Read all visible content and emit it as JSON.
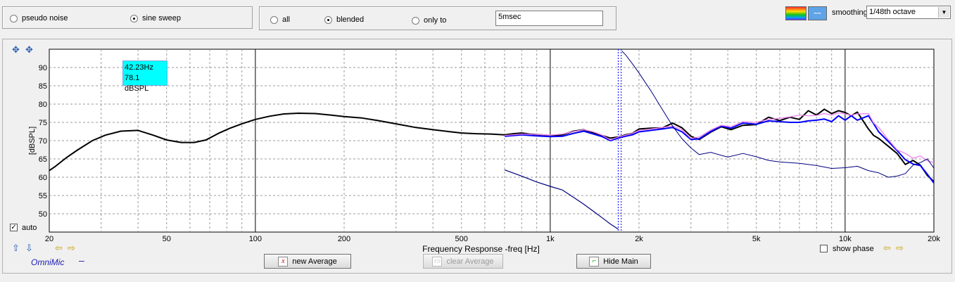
{
  "signal_group": {
    "options": [
      {
        "label": "pseudo noise",
        "selected": false
      },
      {
        "label": "sine sweep",
        "selected": true
      }
    ]
  },
  "window_group": {
    "options": [
      {
        "label": "all",
        "selected": false
      },
      {
        "label": "blended",
        "selected": true
      },
      {
        "label": "only to",
        "selected": false
      }
    ],
    "only_to_value": "5msec"
  },
  "top_right": {
    "smoothing_label": "smoothing",
    "smoothing_value": "1/48th octave"
  },
  "chart_panel": {
    "auto_label": "auto",
    "auto_checked": true,
    "show_phase_label": "show phase",
    "show_phase_checked": false,
    "source_label": "OmniMic",
    "source_dash": "–"
  },
  "buttons": {
    "new_average": "new Average",
    "clear_average": "clear Average",
    "hide_main": "Hide Main"
  },
  "chart_data": {
    "type": "line",
    "xlabel": "Frequency Response -freq [Hz]",
    "ylabel": "[dBSPL]",
    "x_scale": "log",
    "xlim": [
      20,
      20000
    ],
    "ylim": [
      45,
      95
    ],
    "grid": true,
    "x_ticks": [
      {
        "value": 20,
        "label": "20"
      },
      {
        "value": 50,
        "label": "50"
      },
      {
        "value": 100,
        "label": "100"
      },
      {
        "value": 200,
        "label": "200"
      },
      {
        "value": 500,
        "label": "500"
      },
      {
        "value": 1000,
        "label": "1k"
      },
      {
        "value": 2000,
        "label": "2k"
      },
      {
        "value": 5000,
        "label": "5k"
      },
      {
        "value": 10000,
        "label": "10k"
      },
      {
        "value": 20000,
        "label": "20k"
      }
    ],
    "y_ticks": [
      50,
      55,
      60,
      65,
      70,
      75,
      80,
      85,
      90
    ],
    "cursor_readout": {
      "freq": "42.23Hz",
      "level": "78.1 dBSPL"
    },
    "crossover_markers": [
      1700,
      1740
    ],
    "series": [
      {
        "color": "#000000",
        "width": 2,
        "x": [
          20,
          21,
          23,
          25,
          28,
          31,
          35,
          40,
          45,
          50,
          56,
          62,
          68,
          75,
          82,
          90,
          100,
          112,
          125,
          140,
          160,
          180,
          200,
          230,
          260,
          300,
          350,
          400,
          450,
          500,
          560,
          630,
          700,
          750,
          800,
          850,
          900,
          1000,
          1100,
          1200,
          1300,
          1400,
          1500,
          1600,
          1700,
          1800,
          1900,
          2000,
          2200,
          2400,
          2600,
          2800,
          3000,
          3200,
          3500,
          3800,
          4100,
          4500,
          5000,
          5500,
          6000,
          6500,
          7000,
          7500,
          8000,
          8500,
          9000,
          9500,
          10000,
          10500,
          11000,
          12000,
          12500,
          13000,
          14000,
          15000,
          16000,
          17000,
          18000,
          19000,
          20000
        ],
        "y": [
          61.8,
          63,
          65.5,
          67.5,
          70,
          71.5,
          72.6,
          72.8,
          71.5,
          70.2,
          69.5,
          69.5,
          70.2,
          72,
          73.4,
          74.6,
          75.8,
          76.7,
          77.3,
          77.5,
          77.4,
          77,
          76.6,
          76.2,
          75.5,
          74.6,
          73.6,
          73,
          72.5,
          72.1,
          71.9,
          71.8,
          71.6,
          71.9,
          72.1,
          71.8,
          71.7,
          71.4,
          71.6,
          72.6,
          73,
          72.1,
          71.4,
          70.7,
          71,
          71.6,
          72,
          73.2,
          73.4,
          73.5,
          74.8,
          73.5,
          71.2,
          70.3,
          72.3,
          73.8,
          73,
          74.2,
          74.4,
          76.4,
          75.5,
          76.4,
          75.8,
          78.2,
          77,
          78.6,
          77.4,
          78.2,
          77.7,
          76.8,
          77.8,
          73.2,
          71.4,
          70.6,
          68.5,
          66.5,
          63.5,
          64.6,
          63.3,
          60.5,
          58.8
        ]
      },
      {
        "color": "#0000ff",
        "width": 2,
        "x": [
          700,
          800,
          900,
          1000,
          1100,
          1200,
          1300,
          1400,
          1500,
          1600,
          1700,
          1800,
          1900,
          2000,
          2200,
          2400,
          2600,
          2800,
          3000,
          3200,
          3500,
          3800,
          4100,
          4500,
          5000,
          5500,
          6000,
          6500,
          7000,
          7500,
          8000,
          8500,
          9000,
          9500,
          10000,
          10500,
          11000,
          12000,
          12500,
          13000,
          14000,
          15000,
          16000,
          17000,
          18000,
          19000,
          20000
        ],
        "y": [
          71.2,
          71.6,
          71.3,
          71.1,
          71.2,
          72,
          72.6,
          71.8,
          71.1,
          70,
          70.7,
          71.2,
          71.6,
          72.4,
          72.8,
          73.2,
          73.6,
          72.4,
          70.3,
          70.5,
          72.5,
          74,
          73.4,
          74.8,
          74.5,
          75.4,
          75.2,
          75,
          75,
          75.4,
          75.6,
          75.9,
          75.2,
          76.8,
          75.6,
          76.8,
          75.6,
          76.8,
          74.6,
          72.4,
          69.8,
          67.3,
          64.8,
          63.6,
          63.2,
          60.8,
          58.4
        ]
      },
      {
        "color": "#ee82ee",
        "width": 1.3,
        "x": [
          700,
          800,
          900,
          1000,
          1100,
          1200,
          1300,
          1400,
          1500,
          1600,
          1700,
          1800,
          1900,
          2000,
          2200,
          2400,
          2600,
          2800,
          3000,
          3200,
          3500,
          3800,
          4100,
          4500,
          5000,
          5500,
          6000,
          6500,
          7000,
          7500,
          8000,
          8500,
          9000,
          9500,
          10000,
          10500,
          11000,
          12000,
          12500,
          13000,
          14000,
          15000,
          16000,
          17000,
          18000,
          19000,
          20000
        ],
        "y": [
          71.4,
          71.8,
          71.7,
          71.5,
          71.8,
          72.5,
          73,
          72.4,
          71.5,
          70.2,
          71,
          71.5,
          72,
          72.8,
          73.2,
          73.6,
          74,
          73,
          70.6,
          71,
          72.9,
          74.2,
          73.8,
          75.2,
          75,
          75.8,
          76.1,
          76.5,
          77,
          76.8,
          76.9,
          77.4,
          77,
          77.6,
          77.3,
          77,
          77.3,
          77.4,
          74.8,
          73.6,
          70.3,
          67.5,
          66.5,
          65.2,
          65.8,
          64.5,
          64
        ]
      },
      {
        "color": "#000080",
        "width": 1,
        "x": [
          1750,
          1800,
          1900,
          2000,
          2200,
          2400,
          2600,
          2800,
          3000,
          3200,
          3500,
          4000,
          4500,
          5000,
          5500,
          6000,
          7000,
          8000,
          9000,
          10000,
          11000,
          12000,
          13000,
          14000,
          15000,
          16000,
          17000,
          18000,
          19000,
          20000
        ],
        "y": [
          94.5,
          93.5,
          91,
          88.5,
          83.5,
          78.5,
          74,
          70.5,
          68,
          66.2,
          66.8,
          65.5,
          66.5,
          65.6,
          64.6,
          64.2,
          63.8,
          63.2,
          62.4,
          62.6,
          63,
          61.8,
          61.2,
          60,
          60.3,
          61,
          63.3,
          64,
          65,
          62.5
        ]
      },
      {
        "color": "#000080",
        "width": 1.2,
        "x": [
          700,
          800,
          900,
          1000,
          1100,
          1200,
          1300,
          1400,
          1500,
          1600,
          1700
        ],
        "y": [
          62,
          60.3,
          58.7,
          57.5,
          56.5,
          54.5,
          52.6,
          50.7,
          48.9,
          47.2,
          45.8
        ]
      }
    ]
  }
}
